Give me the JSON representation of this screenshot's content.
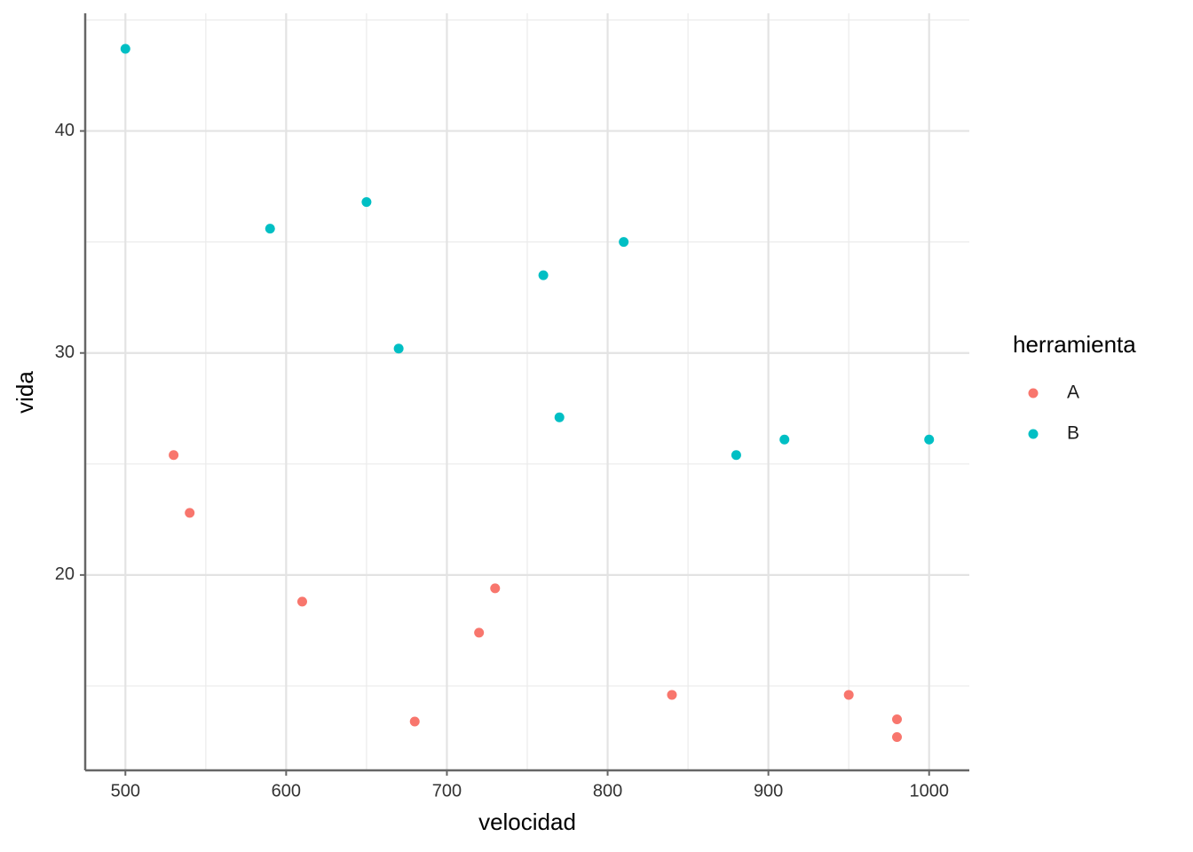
{
  "chart_data": {
    "type": "scatter",
    "x_label": "velocidad",
    "y_label": "vida",
    "legend_title": "herramienta",
    "legend": "right",
    "xlim": [
      475,
      1025
    ],
    "ylim": [
      11.2,
      45.3
    ],
    "xticks": [
      500,
      600,
      700,
      800,
      900,
      1000
    ],
    "yticks": [
      20,
      30,
      40
    ],
    "x_minor_ticks": [
      550,
      650,
      750,
      850,
      950
    ],
    "y_minor_ticks": [
      15,
      25,
      35,
      45
    ],
    "grid": true,
    "series": [
      {
        "name": "A",
        "color": "#F8766D",
        "x": [
          530,
          540,
          610,
          680,
          720,
          730,
          840,
          950,
          980,
          980
        ],
        "values": [
          25.4,
          22.8,
          18.8,
          13.4,
          17.4,
          19.4,
          14.6,
          14.6,
          13.5,
          12.7
        ]
      },
      {
        "name": "B",
        "color": "#00BFC4",
        "x": [
          500,
          590,
          650,
          670,
          760,
          770,
          810,
          880,
          910,
          1000
        ],
        "values": [
          43.7,
          35.6,
          36.8,
          30.2,
          33.5,
          27.1,
          35.0,
          25.4,
          26.1,
          26.1
        ]
      }
    ]
  }
}
